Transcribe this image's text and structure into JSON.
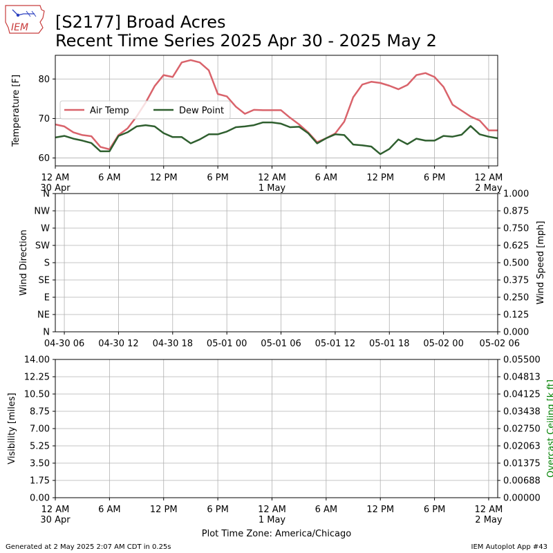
{
  "header": {
    "title_line1": "[S2177] Broad Acres",
    "title_line2": "Recent Time Series 2025 Apr 30 - 2025 May 2",
    "logo_text": "IEM"
  },
  "footer": {
    "left": "Generated at 2 May 2025 2:07 AM CDT in 0.25s",
    "right": "IEM Autoplot App #43"
  },
  "colors": {
    "air_temp": "#d9636b",
    "dew_point": "#2f5f2f",
    "ceiling_label": "#008000",
    "grid": "#b0b0b0"
  },
  "chart_data": [
    {
      "type": "line",
      "ylabel": "Temperature [F]",
      "ylim": [
        58,
        86
      ],
      "yticks": [
        60,
        70,
        80
      ],
      "x_hours": [
        0,
        1,
        2,
        3,
        4,
        5,
        6,
        7,
        8,
        9,
        10,
        11,
        12,
        13,
        14,
        15,
        16,
        17,
        18,
        19,
        20,
        21,
        22,
        23,
        24,
        25,
        26,
        27,
        28,
        29,
        30,
        31,
        32,
        33,
        34,
        35,
        36,
        37,
        38,
        39,
        40,
        41,
        42,
        43,
        44,
        45,
        46,
        47,
        48,
        49
      ],
      "xlim_hours": [
        0,
        49
      ],
      "xtick_labels": [
        {
          "hour": 0,
          "l1": "12 AM",
          "l2": "30 Apr"
        },
        {
          "hour": 6,
          "l1": "6 AM",
          "l2": ""
        },
        {
          "hour": 12,
          "l1": "12 PM",
          "l2": ""
        },
        {
          "hour": 18,
          "l1": "6 PM",
          "l2": ""
        },
        {
          "hour": 24,
          "l1": "12 AM",
          "l2": "1 May"
        },
        {
          "hour": 30,
          "l1": "6 AM",
          "l2": ""
        },
        {
          "hour": 36,
          "l1": "12 PM",
          "l2": ""
        },
        {
          "hour": 42,
          "l1": "6 PM",
          "l2": ""
        },
        {
          "hour": 48,
          "l1": "12 AM",
          "l2": "2 May"
        }
      ],
      "legend": "left",
      "series": [
        {
          "name": "Air Temp",
          "values": [
            68.5,
            68.0,
            66.5,
            65.8,
            65.5,
            62.8,
            62.2,
            65.8,
            67.5,
            70.5,
            74.0,
            78.2,
            81.0,
            80.5,
            84.2,
            84.8,
            84.2,
            82.2,
            76.2,
            75.6,
            73.0,
            71.2,
            72.2,
            72.1,
            72.1,
            72.1,
            70.2,
            68.5,
            66.5,
            64.0,
            65.0,
            66.2,
            69.2,
            75.4,
            78.6,
            79.3,
            79.0,
            78.3,
            77.4,
            78.5,
            81.0,
            81.5,
            80.5,
            78.0,
            73.5,
            72.0,
            70.5,
            69.5,
            67.0,
            67.0
          ]
        },
        {
          "name": "Dew Point",
          "values": [
            65.2,
            65.6,
            64.9,
            64.4,
            63.8,
            61.7,
            61.7,
            65.6,
            66.5,
            68.0,
            68.3,
            68.0,
            66.3,
            65.3,
            65.3,
            63.7,
            64.7,
            66.0,
            66.0,
            66.7,
            67.8,
            68.0,
            68.3,
            69.0,
            69.0,
            68.7,
            67.8,
            67.9,
            66.3,
            63.7,
            65.0,
            66.0,
            65.8,
            63.4,
            63.2,
            62.9,
            61.0,
            62.3,
            64.7,
            63.5,
            64.9,
            64.4,
            64.4,
            65.6,
            65.4,
            65.9,
            68.1,
            66.0,
            65.4,
            65.0
          ]
        }
      ]
    },
    {
      "type": "scatter",
      "ylabel": "Wind Direction",
      "y2label": "Wind Speed [mph]",
      "direction_ticks": [
        "N",
        "NE",
        "E",
        "SE",
        "S",
        "SW",
        "W",
        "NW",
        "N"
      ],
      "speed_ticks": [
        "0.000",
        "0.125",
        "0.250",
        "0.375",
        "0.500",
        "0.625",
        "0.750",
        "0.875",
        "1.000"
      ],
      "y2lim": [
        0,
        1
      ],
      "xtick_labels": [
        "04-30 06",
        "04-30 12",
        "04-30 18",
        "05-01 00",
        "05-01 06",
        "05-01 12",
        "05-01 18",
        "05-02 00",
        "05-02 06"
      ],
      "xtick_hours": [
        6,
        12,
        18,
        24,
        30,
        36,
        42,
        48,
        54
      ],
      "xlim_hours": [
        5.0,
        54.0
      ],
      "series": []
    },
    {
      "type": "line",
      "ylabel": "Visibility [miles]",
      "y2label": "Overcast Ceiling [k ft]",
      "ylim": [
        0,
        14
      ],
      "yticks": [
        "0.00",
        "1.75",
        "3.50",
        "5.25",
        "7.00",
        "8.75",
        "10.50",
        "12.25",
        "14.00"
      ],
      "y2lim": [
        0,
        0.055
      ],
      "y2ticks": [
        "0.00000",
        "0.00688",
        "0.01375",
        "0.02063",
        "0.02750",
        "0.03438",
        "0.04125",
        "0.04813",
        "0.05500"
      ],
      "xlim_hours": [
        0,
        49
      ],
      "xtick_labels": [
        {
          "hour": 0,
          "l1": "12 AM",
          "l2": "30 Apr"
        },
        {
          "hour": 6,
          "l1": "6 AM",
          "l2": ""
        },
        {
          "hour": 12,
          "l1": "12 PM",
          "l2": ""
        },
        {
          "hour": 18,
          "l1": "6 PM",
          "l2": ""
        },
        {
          "hour": 24,
          "l1": "12 AM",
          "l2": "1 May"
        },
        {
          "hour": 30,
          "l1": "6 AM",
          "l2": ""
        },
        {
          "hour": 36,
          "l1": "12 PM",
          "l2": ""
        },
        {
          "hour": 42,
          "l1": "6 PM",
          "l2": ""
        },
        {
          "hour": 48,
          "l1": "12 AM",
          "l2": "2 May"
        }
      ],
      "xlabel": "Plot Time Zone: America/Chicago",
      "series": []
    }
  ]
}
